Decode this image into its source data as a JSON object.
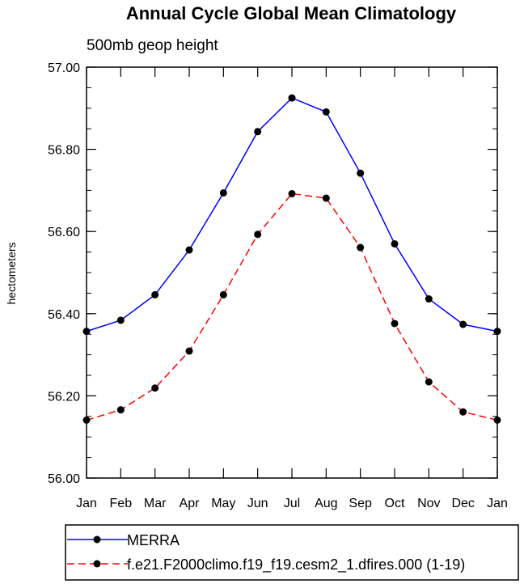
{
  "chart_data": {
    "type": "line",
    "title": "Annual Cycle Global Mean Climatology",
    "subtitle": "500mb geop height",
    "xlabel": "",
    "ylabel": "hectometers",
    "categories": [
      "Jan",
      "Feb",
      "Mar",
      "Apr",
      "May",
      "Jun",
      "Jul",
      "Aug",
      "Sep",
      "Oct",
      "Nov",
      "Dec",
      "Jan"
    ],
    "ylim": [
      56.0,
      57.0
    ],
    "yticks": [
      "56.00",
      "56.20",
      "56.40",
      "56.60",
      "56.80",
      "57.00"
    ],
    "grid": false,
    "legend_position": "bottom",
    "series": [
      {
        "name": "MERRA",
        "color": "#0000ff",
        "dash": "solid",
        "values": [
          56.357,
          56.384,
          56.446,
          56.555,
          56.694,
          56.843,
          56.925,
          56.891,
          56.742,
          56.57,
          56.436,
          56.374,
          56.357
        ]
      },
      {
        "name": "f.e21.F2000climo.f19_f19.cesm2_1.dfires.000 (1-19)",
        "color": "#ff0000",
        "dash": "dashed",
        "values": [
          56.141,
          56.166,
          56.219,
          56.309,
          56.446,
          56.593,
          56.692,
          56.681,
          56.561,
          56.376,
          56.234,
          56.161,
          56.141
        ]
      }
    ]
  }
}
